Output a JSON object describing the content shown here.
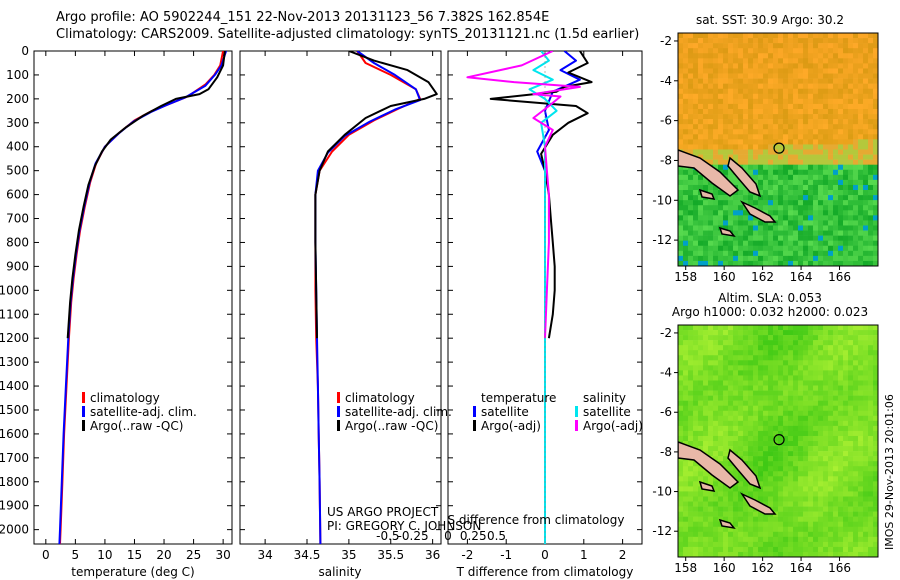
{
  "header": {
    "title_line1": "Argo profile: AO 5902244_151 22-Nov-2013 20131123_56 7.382S 162.854E",
    "title_line2": "Climatology: CARS2009. Satellite-adjusted climatology: synTS_20131121.nc (1.5d earlier)"
  },
  "stamp": "IMOS 29-Nov-2013 20:01:06",
  "project_credit": {
    "line1": "US ARGO PROJECT",
    "line2": "PI: GREGORY C. JOHNSON"
  },
  "colors": {
    "climatology": "#ff0000",
    "satellite_adj": "#0000ff",
    "argo": "#000000",
    "salinity_satellite": "#00e5ee",
    "salinity_argo": "#ff00ff",
    "land": "#e8b8a8"
  },
  "chart_data": [
    {
      "type": "line",
      "xlabel": "temperature (deg C)",
      "ylabel": "",
      "xlim": [
        -2,
        31.5
      ],
      "ylim": [
        2060,
        0
      ],
      "xticks": [
        0,
        5,
        10,
        15,
        20,
        25,
        30
      ],
      "yticks": [
        0,
        100,
        200,
        300,
        400,
        500,
        600,
        700,
        800,
        900,
        1000,
        1100,
        1200,
        1300,
        1400,
        1500,
        1600,
        1700,
        1800,
        1900,
        2000
      ],
      "legend": [
        "climatology",
        "satellite-adj. clim.",
        "Argo(..raw -QC)"
      ],
      "series": [
        {
          "name": "climatology",
          "color": "#ff0000",
          "points": [
            [
              30.0,
              0
            ],
            [
              29.5,
              60
            ],
            [
              28.5,
              100
            ],
            [
              27.0,
              140
            ],
            [
              24.0,
              190
            ],
            [
              21.0,
              220
            ],
            [
              18.0,
              250
            ],
            [
              15.0,
              290
            ],
            [
              12.5,
              340
            ],
            [
              10.0,
              400
            ],
            [
              8.5,
              470
            ],
            [
              7.5,
              550
            ],
            [
              6.6,
              650
            ],
            [
              5.8,
              750
            ],
            [
              5.2,
              850
            ],
            [
              4.7,
              950
            ],
            [
              4.3,
              1050
            ],
            [
              3.9,
              1200
            ],
            [
              3.5,
              1400
            ],
            [
              3.1,
              1600
            ],
            [
              2.8,
              1800
            ],
            [
              2.5,
              2000
            ],
            [
              2.4,
              2060
            ]
          ]
        },
        {
          "name": "satellite-adj. clim.",
          "color": "#0000ff",
          "points": [
            [
              30.5,
              0
            ],
            [
              29.7,
              60
            ],
            [
              28.6,
              100
            ],
            [
              27.0,
              145
            ],
            [
              23.5,
              195
            ],
            [
              20.5,
              225
            ],
            [
              17.8,
              255
            ],
            [
              14.8,
              295
            ],
            [
              12.3,
              345
            ],
            [
              10.0,
              400
            ],
            [
              8.4,
              470
            ],
            [
              7.4,
              550
            ],
            [
              6.5,
              650
            ],
            [
              5.7,
              750
            ],
            [
              5.1,
              850
            ],
            [
              4.6,
              950
            ],
            [
              4.2,
              1050
            ],
            [
              3.8,
              1200
            ],
            [
              3.4,
              1400
            ],
            [
              3.0,
              1600
            ],
            [
              2.7,
              1800
            ],
            [
              2.4,
              2000
            ],
            [
              2.3,
              2060
            ]
          ]
        },
        {
          "name": "Argo(..raw -QC)",
          "color": "#000000",
          "points": [
            [
              30.3,
              0
            ],
            [
              30.0,
              60
            ],
            [
              29.0,
              110
            ],
            [
              27.5,
              160
            ],
            [
              26.0,
              180
            ],
            [
              22.0,
              200
            ],
            [
              19.5,
              230
            ],
            [
              16.5,
              270
            ],
            [
              13.5,
              320
            ],
            [
              11.0,
              370
            ],
            [
              9.5,
              420
            ],
            [
              8.3,
              480
            ],
            [
              7.2,
              560
            ],
            [
              6.4,
              650
            ],
            [
              5.6,
              750
            ],
            [
              5.0,
              850
            ],
            [
              4.5,
              950
            ],
            [
              4.1,
              1050
            ],
            [
              3.7,
              1200
            ]
          ]
        }
      ]
    },
    {
      "type": "line",
      "xlabel": "salinity",
      "ylabel": "",
      "xlim": [
        33.7,
        36.1
      ],
      "ylim": [
        2060,
        0
      ],
      "xticks": [
        34,
        34.5,
        35,
        35.5,
        36
      ],
      "legend": [
        "climatology",
        "satellite-adj. clim.",
        "Argo(..raw -QC)"
      ],
      "series": [
        {
          "name": "climatology",
          "color": "#ff0000",
          "points": [
            [
              35.1,
              0
            ],
            [
              35.2,
              50
            ],
            [
              35.5,
              100
            ],
            [
              35.8,
              160
            ],
            [
              35.85,
              200
            ],
            [
              35.6,
              240
            ],
            [
              35.3,
              290
            ],
            [
              35.0,
              350
            ],
            [
              34.8,
              420
            ],
            [
              34.65,
              500
            ],
            [
              34.6,
              600
            ],
            [
              34.6,
              700
            ],
            [
              34.6,
              800
            ],
            [
              34.6,
              1000
            ],
            [
              34.61,
              1200
            ],
            [
              34.63,
              1400
            ],
            [
              34.64,
              1600
            ],
            [
              34.65,
              1800
            ],
            [
              34.66,
              2060
            ]
          ]
        },
        {
          "name": "satellite-adj. clim.",
          "color": "#0000ff",
          "points": [
            [
              35.1,
              0
            ],
            [
              35.3,
              50
            ],
            [
              35.55,
              100
            ],
            [
              35.8,
              160
            ],
            [
              35.85,
              205
            ],
            [
              35.55,
              245
            ],
            [
              35.25,
              295
            ],
            [
              34.95,
              355
            ],
            [
              34.75,
              425
            ],
            [
              34.63,
              500
            ],
            [
              34.6,
              600
            ],
            [
              34.6,
              800
            ],
            [
              34.61,
              1000
            ],
            [
              34.62,
              1200
            ],
            [
              34.63,
              1400
            ],
            [
              34.64,
              1600
            ],
            [
              34.65,
              1800
            ],
            [
              34.66,
              2060
            ]
          ]
        },
        {
          "name": "Argo(..raw -QC)",
          "color": "#000000",
          "points": [
            [
              35.0,
              0
            ],
            [
              35.3,
              40
            ],
            [
              35.7,
              80
            ],
            [
              35.95,
              130
            ],
            [
              36.05,
              180
            ],
            [
              35.9,
              200
            ],
            [
              35.5,
              230
            ],
            [
              35.2,
              280
            ],
            [
              34.95,
              350
            ],
            [
              34.75,
              420
            ],
            [
              34.65,
              500
            ],
            [
              34.6,
              600
            ],
            [
              34.6,
              800
            ],
            [
              34.61,
              1000
            ],
            [
              34.62,
              1200
            ]
          ]
        }
      ]
    },
    {
      "type": "line",
      "xlabel": "T difference from climatology",
      "xlabel_top": "S difference from climatology",
      "ylabel": "",
      "xlim": [
        -2.5,
        2.5
      ],
      "ylim": [
        2060,
        0
      ],
      "xticks": [
        -2,
        -1,
        0,
        1,
        2
      ],
      "top_xticks": [
        "-0.5",
        "-0.25",
        "0",
        "0.25",
        "0.5"
      ],
      "legend_headers": [
        "temperature",
        "salinity"
      ],
      "legend": [
        "satellite",
        "Argo(-adj)",
        "satellite",
        "Argo(-adj)"
      ],
      "series": [
        {
          "name": "satellite",
          "color": "#0000ff",
          "points": [
            [
              0.5,
              0
            ],
            [
              0.8,
              40
            ],
            [
              0.4,
              80
            ],
            [
              0.9,
              120
            ],
            [
              0.2,
              170
            ],
            [
              0.0,
              250
            ],
            [
              0.1,
              330
            ],
            [
              -0.2,
              420
            ],
            [
              0.0,
              500
            ],
            [
              0.0,
              700
            ],
            [
              0.0,
              1000
            ],
            [
              0.0,
              1500
            ],
            [
              0.0,
              2060
            ]
          ]
        },
        {
          "name": "Argo(-adj)",
          "color": "#000000",
          "points": [
            [
              0.9,
              0
            ],
            [
              1.1,
              50
            ],
            [
              0.6,
              90
            ],
            [
              1.2,
              130
            ],
            [
              0.5,
              150
            ],
            [
              0.3,
              170
            ],
            [
              -1.4,
              200
            ],
            [
              0.8,
              230
            ],
            [
              1.1,
              260
            ],
            [
              0.6,
              300
            ],
            [
              0.2,
              350
            ],
            [
              -0.1,
              430
            ],
            [
              0.0,
              500
            ],
            [
              0.1,
              600
            ],
            [
              0.15,
              700
            ],
            [
              0.2,
              800
            ],
            [
              0.25,
              900
            ],
            [
              0.25,
              1000
            ],
            [
              0.2,
              1100
            ],
            [
              0.1,
              1200
            ]
          ]
        },
        {
          "name": "satellite",
          "color": "#00e5ee",
          "points": [
            [
              -0.1,
              0
            ],
            [
              0.1,
              40
            ],
            [
              -0.3,
              80
            ],
            [
              0.2,
              120
            ],
            [
              -0.4,
              160
            ],
            [
              0.0,
              200
            ],
            [
              0.3,
              250
            ],
            [
              -0.1,
              300
            ],
            [
              0.0,
              400
            ],
            [
              0.0,
              600
            ],
            [
              0.0,
              1000
            ],
            [
              0.0,
              1500
            ],
            [
              0.0,
              2060
            ]
          ]
        },
        {
          "name": "Argo(-adj)",
          "color": "#ff00ff",
          "points": [
            [
              0.2,
              0
            ],
            [
              -0.6,
              60
            ],
            [
              -2.0,
              110
            ],
            [
              -0.8,
              130
            ],
            [
              0.9,
              150
            ],
            [
              -0.3,
              180
            ],
            [
              0.4,
              190
            ],
            [
              0.1,
              230
            ],
            [
              -0.3,
              280
            ],
            [
              0.2,
              330
            ],
            [
              0.0,
              400
            ],
            [
              0.05,
              500
            ],
            [
              0.1,
              600
            ],
            [
              0.1,
              700
            ],
            [
              0.1,
              800
            ],
            [
              0.05,
              1000
            ],
            [
              0.0,
              1200
            ]
          ]
        }
      ]
    },
    {
      "type": "heatmap",
      "title": "sat. SST: 30.9 Argo: 30.2",
      "xlim": [
        157.6,
        168
      ],
      "ylim": [
        -13.3,
        -1.6
      ],
      "xticks": [
        158,
        160,
        162,
        164,
        166
      ],
      "yticks": [
        -2,
        -4,
        -6,
        -8,
        -10,
        -12
      ],
      "marker": {
        "lon": 162.854,
        "lat": -7.382
      }
    },
    {
      "type": "heatmap",
      "title_line1": "Altim. SLA: 0.053",
      "title_line2": "Argo h1000: 0.032 h2000: 0.023",
      "xlim": [
        157.6,
        168
      ],
      "ylim": [
        -13.3,
        -1.6
      ],
      "xticks": [
        158,
        160,
        162,
        164,
        166
      ],
      "yticks": [
        -2,
        -4,
        -6,
        -8,
        -10,
        -12
      ],
      "marker": {
        "lon": 162.854,
        "lat": -7.382
      }
    }
  ]
}
